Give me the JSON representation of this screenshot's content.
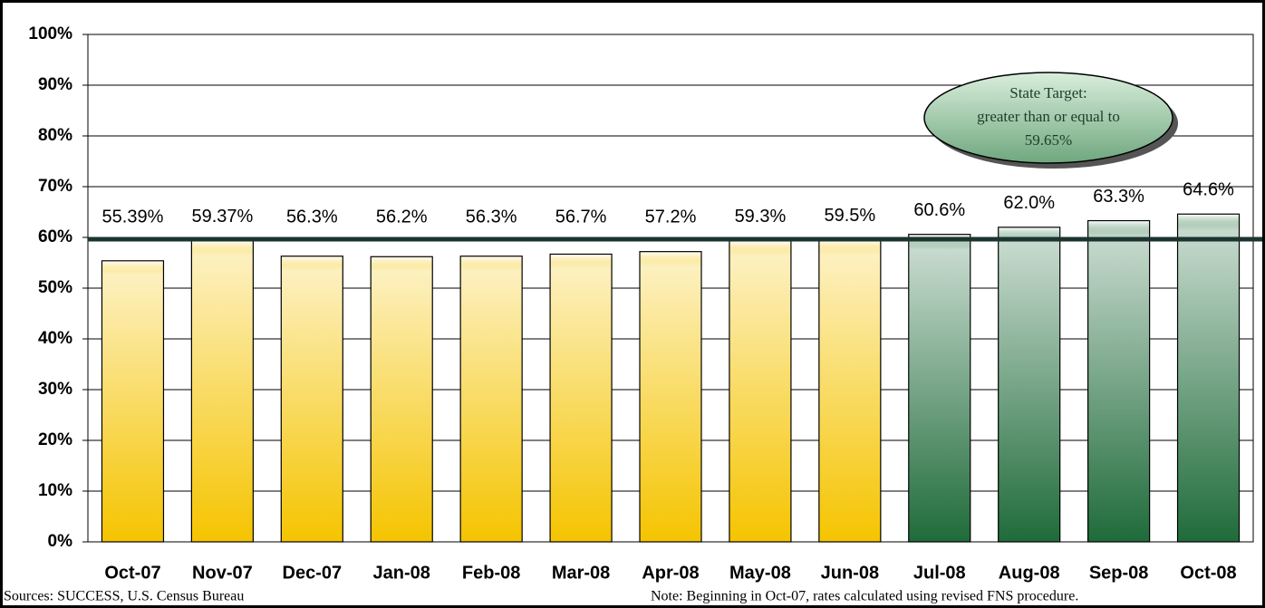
{
  "chart_data": {
    "type": "bar",
    "categories": [
      "Oct-07",
      "Nov-07",
      "Dec-07",
      "Jan-08",
      "Feb-08",
      "Mar-08",
      "Apr-08",
      "May-08",
      "Jun-08",
      "Jul-08",
      "Aug-08",
      "Sep-08",
      "Oct-08"
    ],
    "values": [
      55.39,
      59.37,
      56.3,
      56.2,
      56.3,
      56.7,
      57.2,
      59.3,
      59.5,
      60.6,
      62.0,
      63.3,
      64.6
    ],
    "value_labels": [
      "55.39%",
      "59.37%",
      "56.3%",
      "56.2%",
      "56.3%",
      "56.7%",
      "57.2%",
      "59.3%",
      "59.5%",
      "60.6%",
      "62.0%",
      "63.3%",
      "64.6%"
    ],
    "colors": [
      "#f5c400",
      "#f5c400",
      "#f5c400",
      "#f5c400",
      "#f5c400",
      "#f5c400",
      "#f5c400",
      "#f5c400",
      "#f5c400",
      "#1f6b3a",
      "#1f6b3a",
      "#1f6b3a",
      "#1f6b3a"
    ],
    "ylim": [
      0,
      100
    ],
    "yticks": [
      {
        "value": 0,
        "label": "0%"
      },
      {
        "value": 10,
        "label": "10%"
      },
      {
        "value": 20,
        "label": "20%"
      },
      {
        "value": 30,
        "label": "30%"
      },
      {
        "value": 40,
        "label": "40%"
      },
      {
        "value": 50,
        "label": "50%"
      },
      {
        "value": 60,
        "label": "60%"
      },
      {
        "value": 70,
        "label": "70%"
      },
      {
        "value": 80,
        "label": "80%"
      },
      {
        "value": 90,
        "label": "90%"
      },
      {
        "value": 100,
        "label": "100%"
      }
    ],
    "grid": true,
    "target_line": 59.65,
    "annotation": [
      "State Target:",
      "greater than or equal to",
      "59.65%"
    ],
    "sources": "Sources: SUCCESS, U.S. Census Bureau",
    "note": "Note: Beginning in Oct-07, rates calculated using revised FNS procedure."
  }
}
